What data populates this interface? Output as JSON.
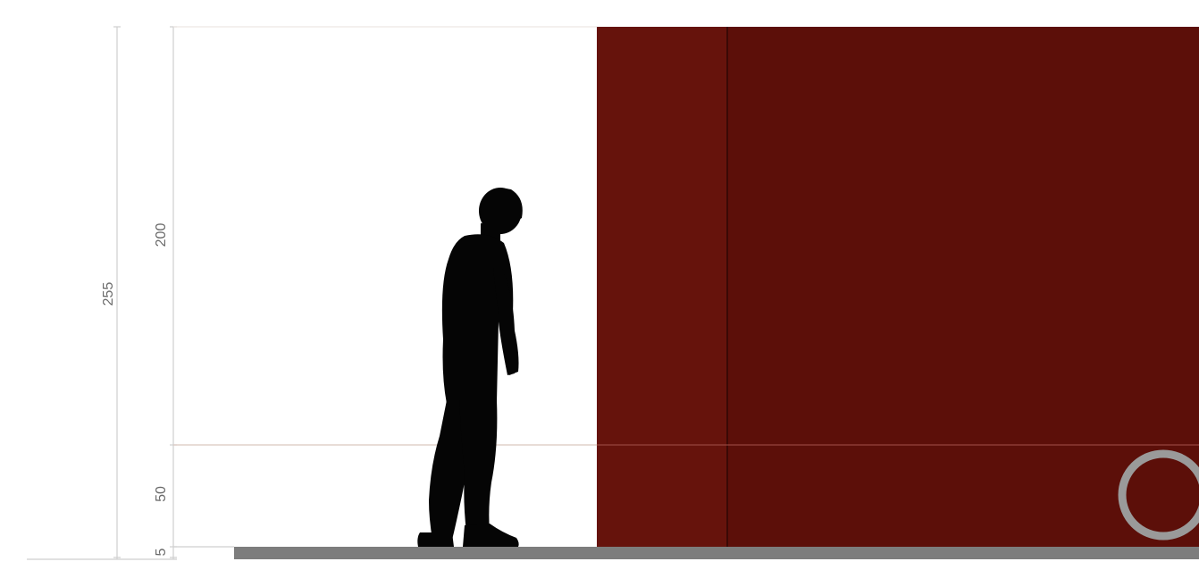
{
  "dimensions": {
    "total_height": "255",
    "upper_height": "200",
    "lower_height": "50",
    "base_height": "5"
  },
  "colors": {
    "panel": "#5e1009",
    "panel_left": "#66130c",
    "panel_divider": "#2b0704",
    "guide_line": "#d9c7bf",
    "dimension_line": "#c8c8c8",
    "floor": "#7d7d7d",
    "silhouette": "#050505",
    "circle_marker": "#9a9a9a"
  },
  "icons": {
    "person": "person-silhouette-icon",
    "marker": "circle-marker-icon"
  }
}
